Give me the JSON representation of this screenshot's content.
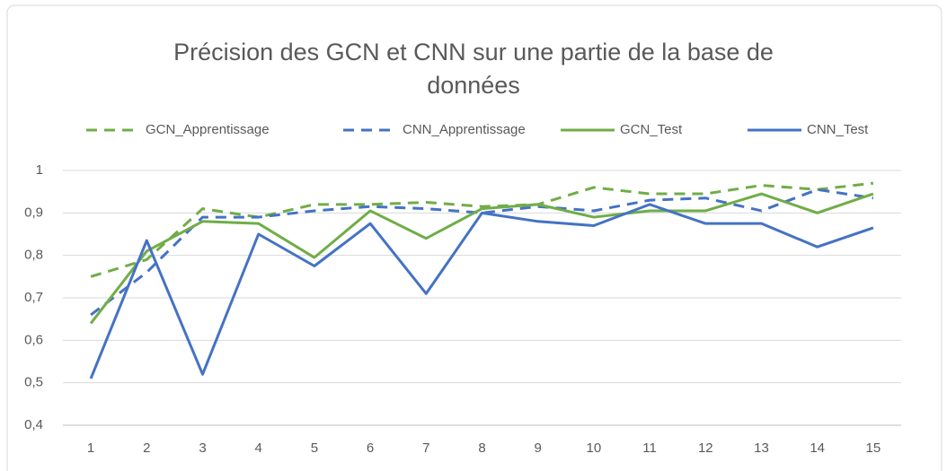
{
  "chart_data": {
    "type": "line",
    "title": "Précision des GCN et CNN sur une partie de la base de données",
    "categories": [
      "1",
      "2",
      "3",
      "4",
      "5",
      "6",
      "7",
      "8",
      "9",
      "10",
      "11",
      "12",
      "13",
      "14",
      "15"
    ],
    "series": [
      {
        "name": "GCN_Apprentissage",
        "color": "#70ad47",
        "dashed": true,
        "values": [
          0.75,
          0.79,
          0.91,
          0.89,
          0.92,
          0.92,
          0.925,
          0.915,
          0.92,
          0.96,
          0.945,
          0.945,
          0.965,
          0.955,
          0.97
        ]
      },
      {
        "name": "CNN_Apprentissage",
        "color": "#4472c4",
        "dashed": true,
        "values": [
          0.66,
          0.76,
          0.89,
          0.89,
          0.905,
          0.915,
          0.91,
          0.9,
          0.915,
          0.905,
          0.93,
          0.935,
          0.905,
          0.955,
          0.935
        ]
      },
      {
        "name": "GCN_Test",
        "color": "#70ad47",
        "dashed": false,
        "values": [
          0.64,
          0.81,
          0.88,
          0.875,
          0.795,
          0.905,
          0.84,
          0.91,
          0.92,
          0.89,
          0.905,
          0.905,
          0.945,
          0.9,
          0.945
        ]
      },
      {
        "name": "CNN_Test",
        "color": "#4472c4",
        "dashed": false,
        "values": [
          0.51,
          0.835,
          0.52,
          0.85,
          0.775,
          0.875,
          0.71,
          0.9,
          0.88,
          0.87,
          0.92,
          0.875,
          0.875,
          0.82,
          0.865
        ]
      }
    ],
    "ylim": [
      0.4,
      1
    ],
    "yticks": [
      {
        "value": 0.4,
        "label": "0,4"
      },
      {
        "value": 0.5,
        "label": "0,5"
      },
      {
        "value": 0.6,
        "label": "0,6"
      },
      {
        "value": 0.7,
        "label": "0,7"
      },
      {
        "value": 0.8,
        "label": "0,8"
      },
      {
        "value": 0.9,
        "label": "0,9"
      },
      1
    ],
    "grid": true,
    "legend": "top"
  }
}
